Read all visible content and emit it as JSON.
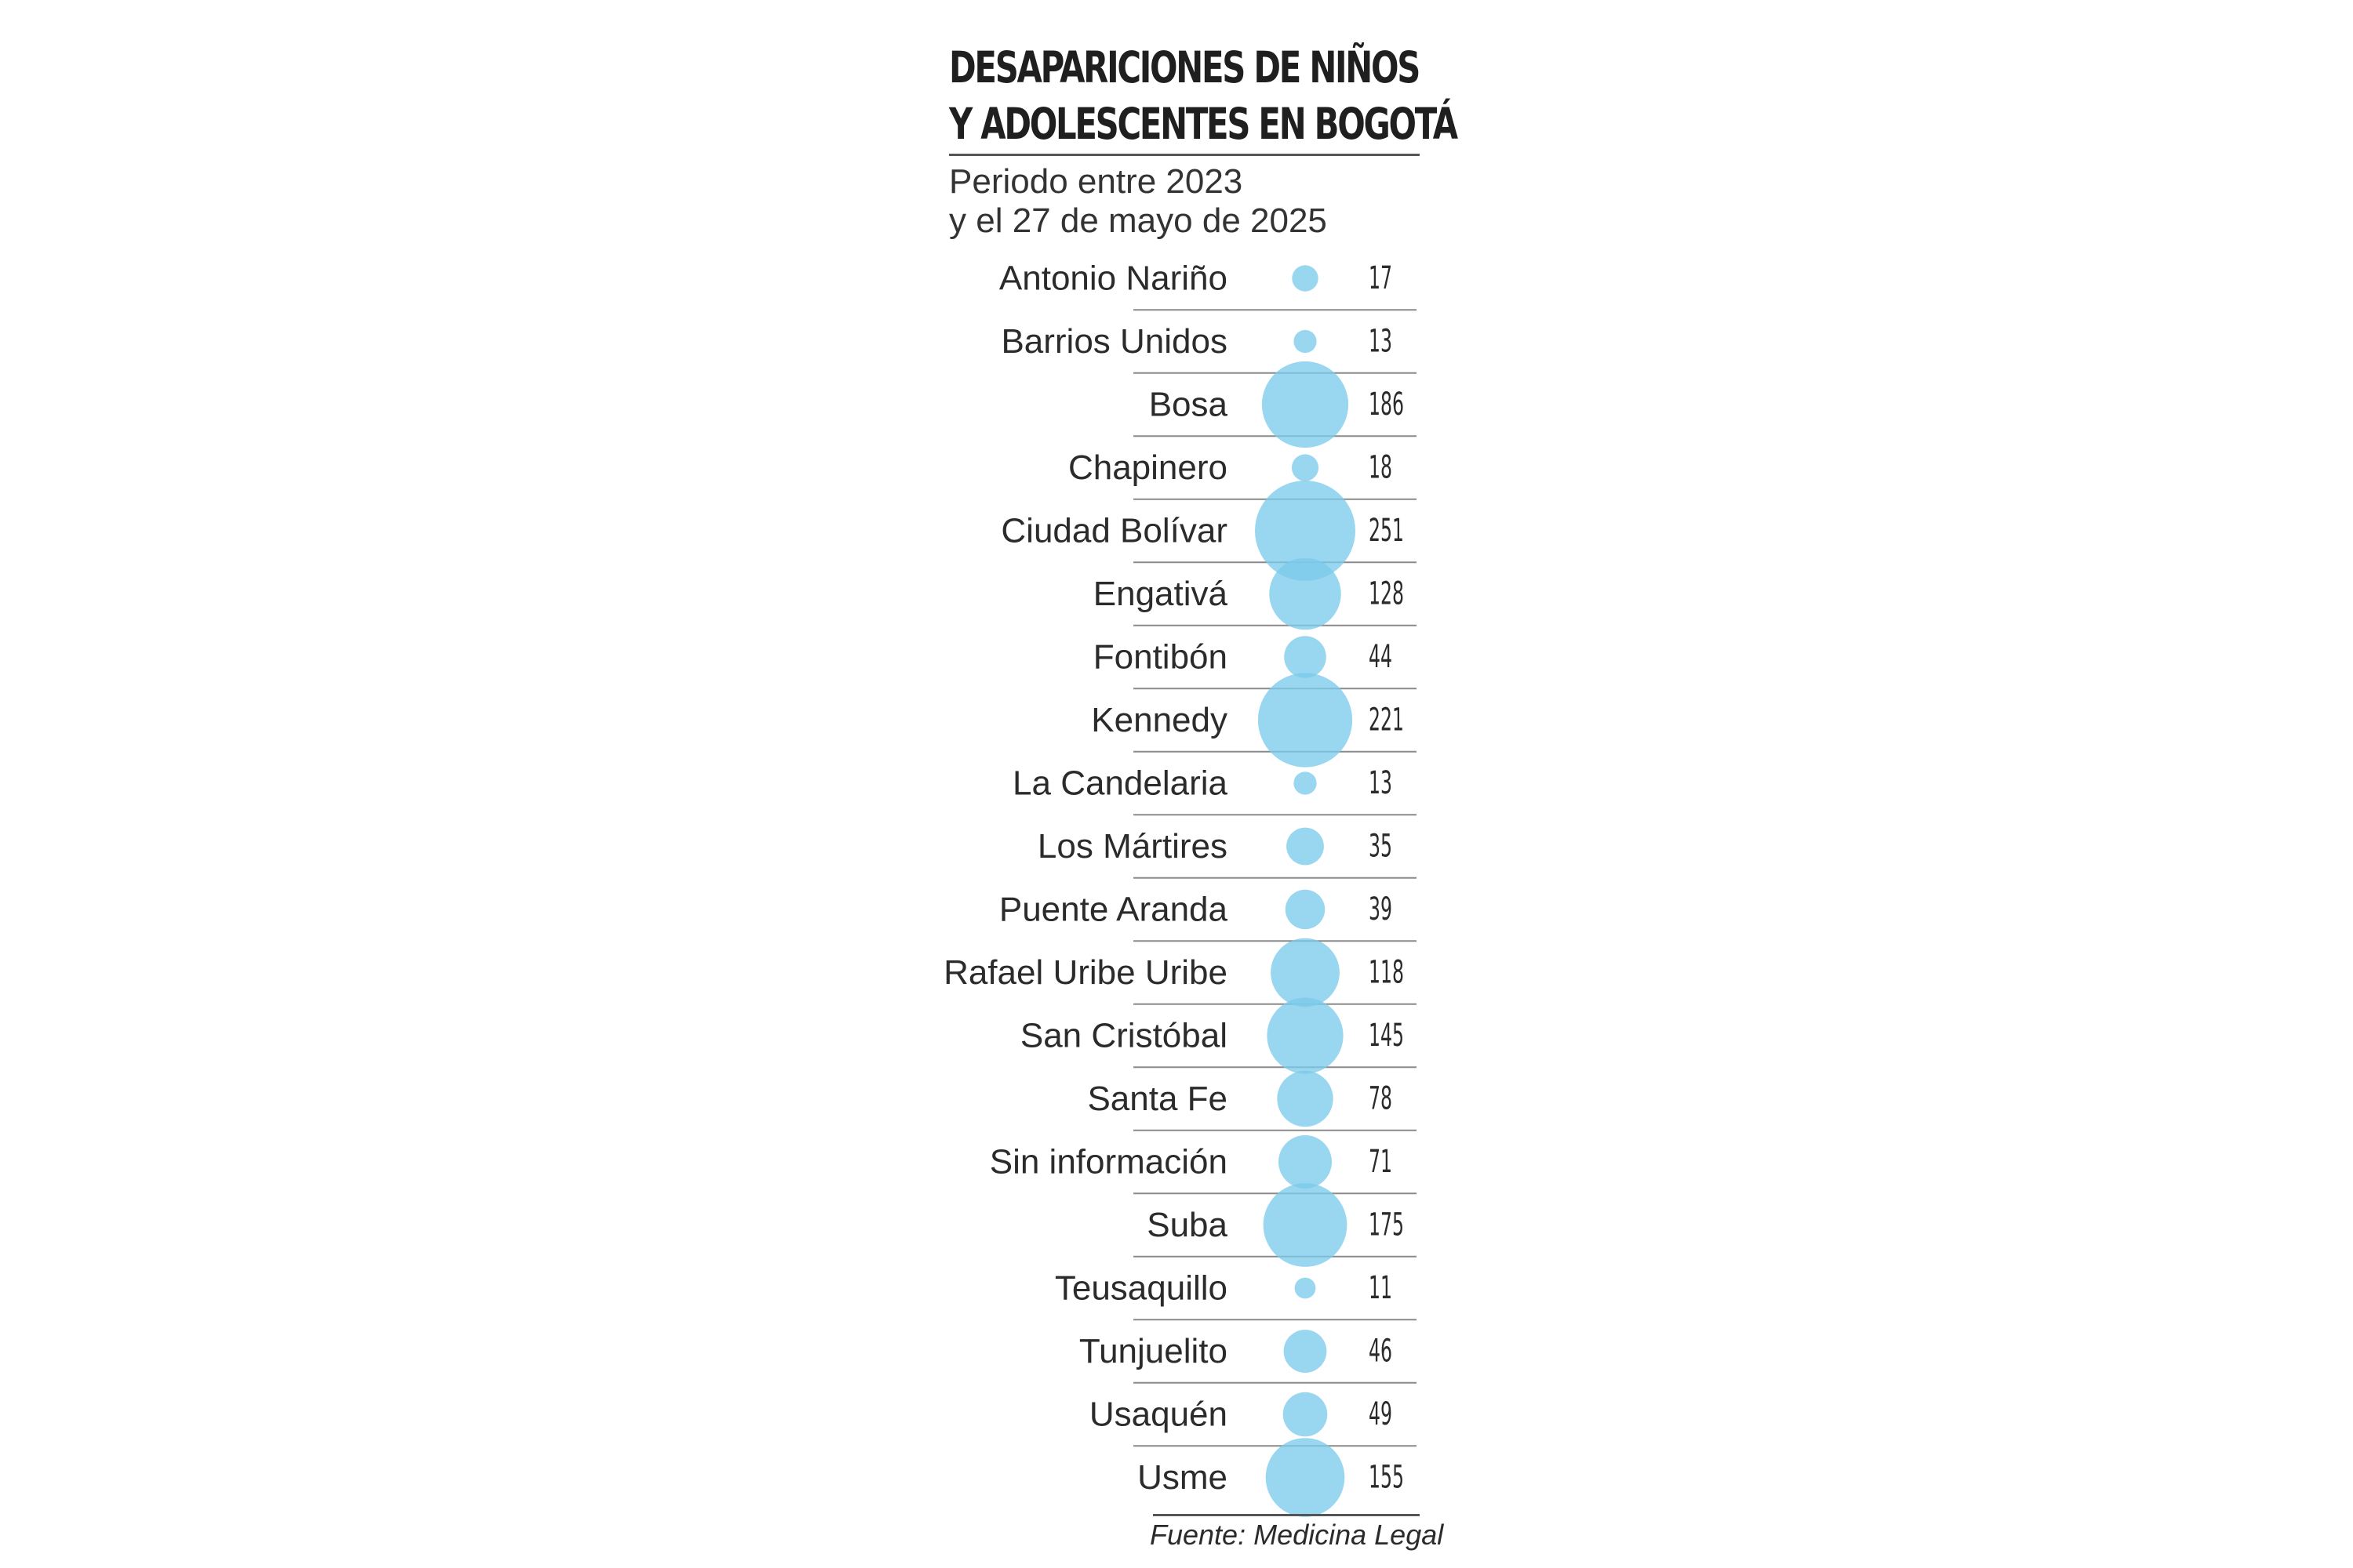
{
  "header": {
    "title_line1": "DESAPARICIONES DE NIÑOS",
    "title_line2": "Y ADOLESCENTES EN BOGOTÁ",
    "subtitle_line1": "Periodo entre 2023",
    "subtitle_line2": "y el 27 de mayo de 2025"
  },
  "footer": {
    "source": "Fuente: Medicina Legal"
  },
  "colors": {
    "bubble": "#7ccbeb",
    "text": "#2b2b2b",
    "rule": "#8a8a8a"
  },
  "chart_data": {
    "type": "bubble",
    "title": "DESAPARICIONES DE NIÑOS Y ADOLESCENTES EN BOGOTÁ",
    "subtitle": "Periodo entre 2023 y el 27 de mayo de 2025",
    "categories": [
      "Antonio Nariño",
      "Barrios Unidos",
      "Bosa",
      "Chapinero",
      "Ciudad Bolívar",
      "Engativá",
      "Fontibón",
      "Kennedy",
      "La Candelaria",
      "Los Mártires",
      "Puente Aranda",
      "Rafael Uribe Uribe",
      "San Cristóbal",
      "Santa Fe",
      "Sin información",
      "Suba",
      "Teusaquillo",
      "Tunjuelito",
      "Usaquén",
      "Usme"
    ],
    "values": [
      17,
      13,
      186,
      18,
      251,
      128,
      44,
      221,
      13,
      35,
      39,
      118,
      145,
      78,
      71,
      175,
      11,
      46,
      49,
      155
    ],
    "value_labels": [
      "17",
      "13",
      "186",
      "18",
      "251",
      "128",
      "44",
      "221",
      "13",
      "35",
      "39",
      "118",
      "145",
      "78",
      "71",
      "175",
      "11",
      "46",
      "49",
      "155"
    ],
    "source": "Fuente: Medicina Legal"
  }
}
